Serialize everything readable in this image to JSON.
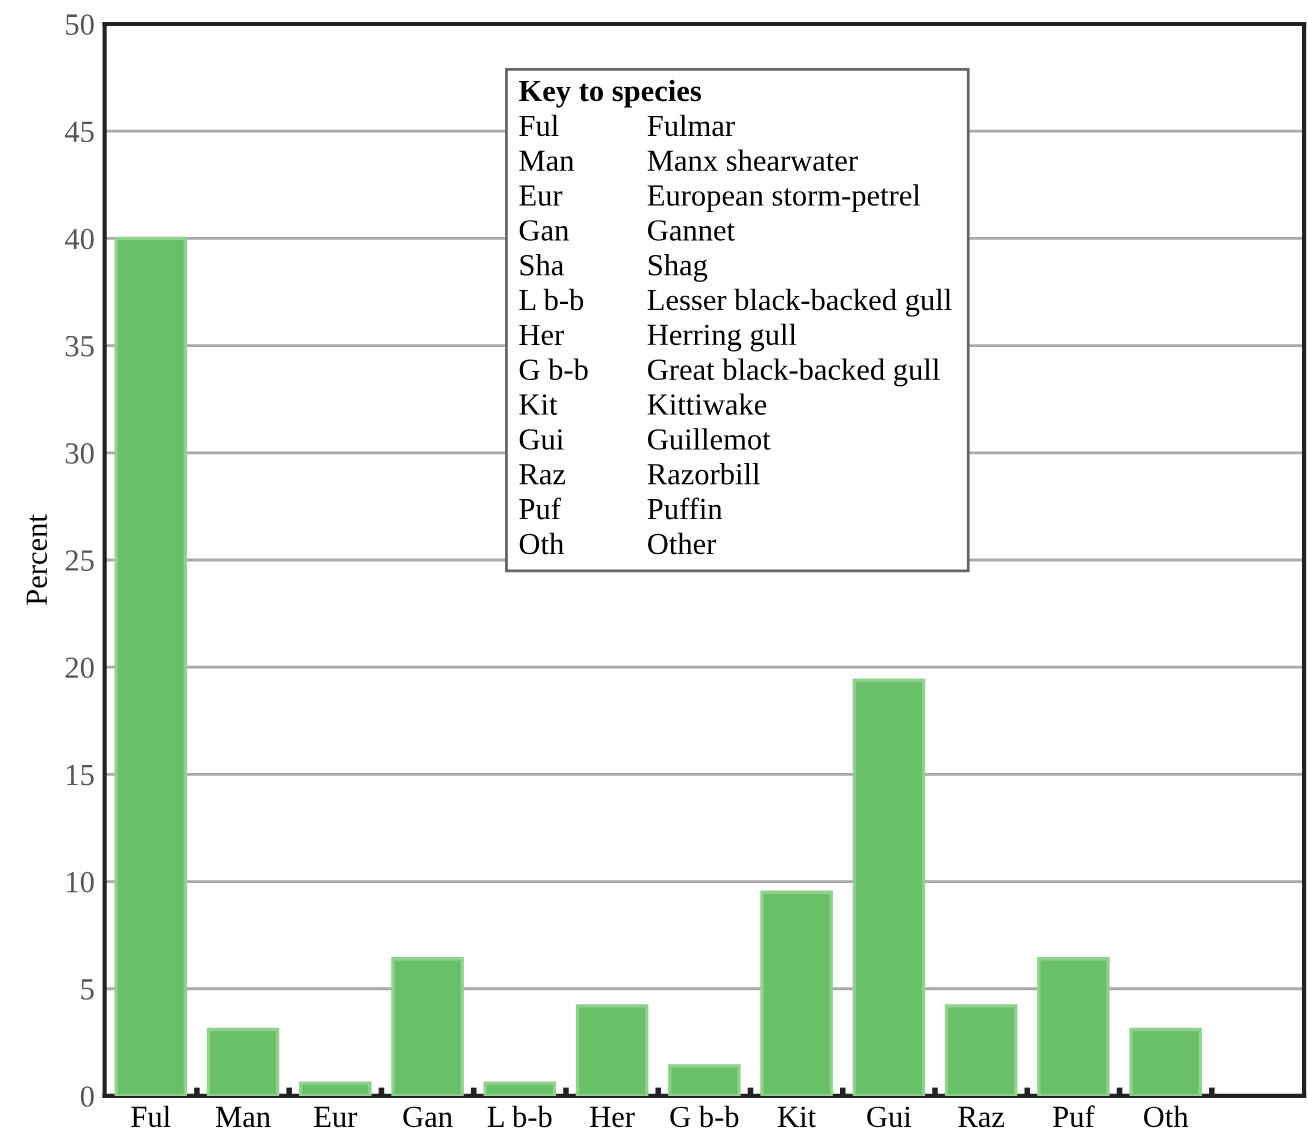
{
  "chart_data": {
    "type": "bar",
    "ylabel": "Percent",
    "categories": [
      "Ful",
      "Man",
      "Eur",
      "Gan",
      "L b-b",
      "Her",
      "G b-b",
      "Kit",
      "Gui",
      "Raz",
      "Puf",
      "Oth",
      null
    ],
    "values": [
      40,
      3.1,
      0.6,
      6.4,
      0.6,
      4.2,
      1.4,
      9.5,
      19.4,
      4.2,
      6.4,
      3.1,
      null
    ],
    "color": "#6abf69",
    "ylim": [
      0,
      50
    ],
    "yticks": [
      0,
      5,
      10,
      15,
      20,
      25,
      30,
      35,
      40,
      45,
      50
    ],
    "grid": "y",
    "annotations": [
      "Key to species",
      "Ful",
      "Fulmar",
      "Man",
      "Manx shearwater",
      "Eur",
      "European storm-petrel",
      "Gan",
      "Gannet",
      "Sha",
      "Shag",
      "L b-b",
      "Lesser black-backed gull",
      "Her",
      "Herring gull",
      "G b-b",
      "Great black-backed gull",
      "Kit",
      "Kittiwake",
      "Gui",
      "Guillemot",
      "Raz",
      "Razorbill",
      "Puf",
      "Puffin",
      "Oth",
      "Other"
    ]
  }
}
